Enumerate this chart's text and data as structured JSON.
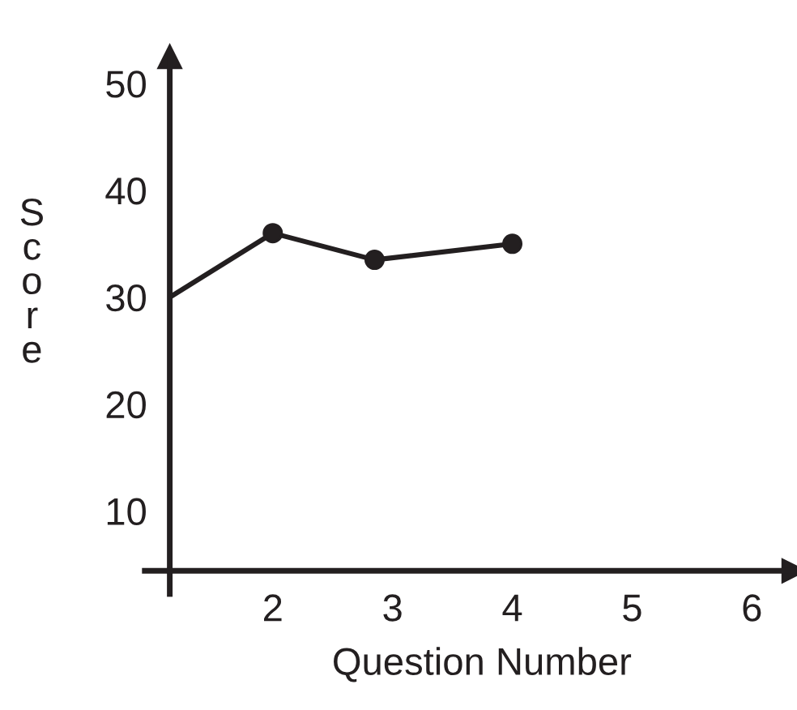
{
  "chart_data": {
    "type": "line",
    "xlabel": "Question Number",
    "ylabel": "Score",
    "x": [
      1.14,
      2,
      2.85,
      4
    ],
    "series": [
      {
        "color": "#231f20",
        "values": [
          30,
          36,
          33.5,
          35
        ]
      }
    ],
    "xlim": [
      1.14,
      6.35
    ],
    "ylim": [
      4.4,
      52.5
    ],
    "xticks": [
      2,
      3,
      4,
      5,
      6
    ],
    "yticks": [
      10,
      20,
      30,
      40,
      50
    ],
    "marker": "circle",
    "line_style": "solid",
    "grid": false
  }
}
